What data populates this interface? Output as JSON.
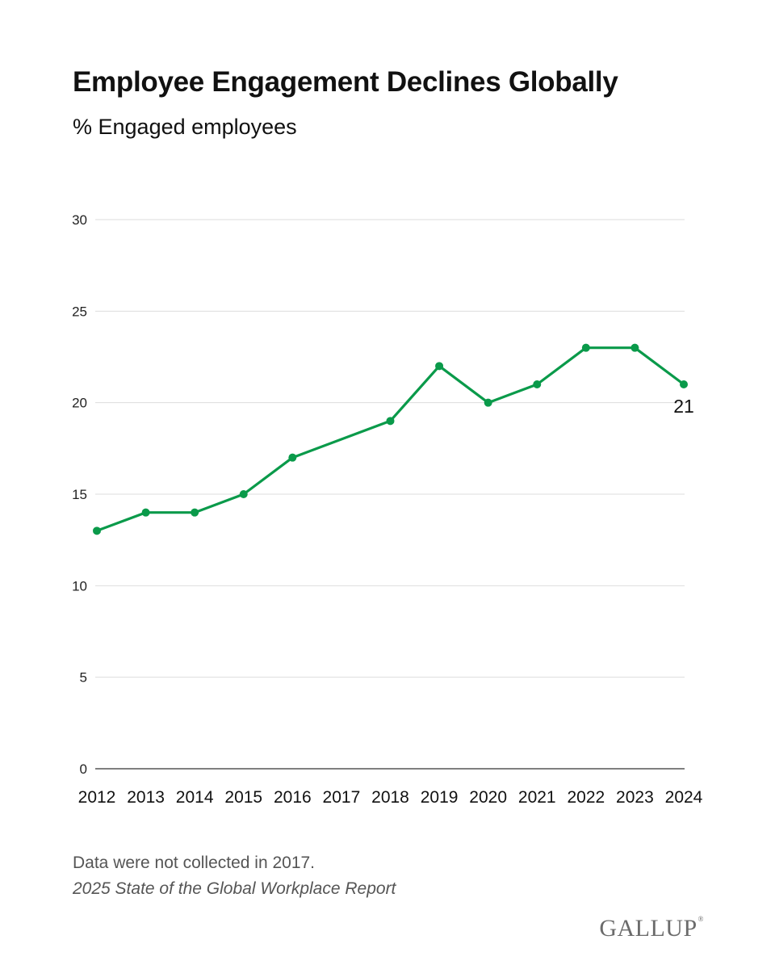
{
  "chart_data": {
    "type": "line",
    "title": "Employee Engagement Declines Globally",
    "subtitle": "% Engaged employees",
    "x": [
      "2012",
      "2013",
      "2014",
      "2015",
      "2016",
      "2017",
      "2018",
      "2019",
      "2020",
      "2021",
      "2022",
      "2023",
      "2024"
    ],
    "series": [
      {
        "values": [
          13,
          14,
          14,
          15,
          17,
          null,
          19,
          22,
          20,
          21,
          23,
          23,
          21
        ],
        "color": "#0a9a4a"
      }
    ],
    "ylim": [
      0,
      30
    ],
    "yticks": [
      "0",
      "5",
      "10",
      "15",
      "20",
      "25",
      "30"
    ],
    "end_label": "21",
    "grid": true,
    "legend": "none"
  },
  "footer": {
    "note": "Data were not collected in 2017.",
    "source": "2025 State of the Global Workplace Report",
    "brand": "GALLUP",
    "brand_mark": "®"
  },
  "colors": {
    "line": "#0a9a4a",
    "grid": "#dddddd",
    "axis": "#333333",
    "note_text": "#555555",
    "brand": "#6b6b6b"
  }
}
